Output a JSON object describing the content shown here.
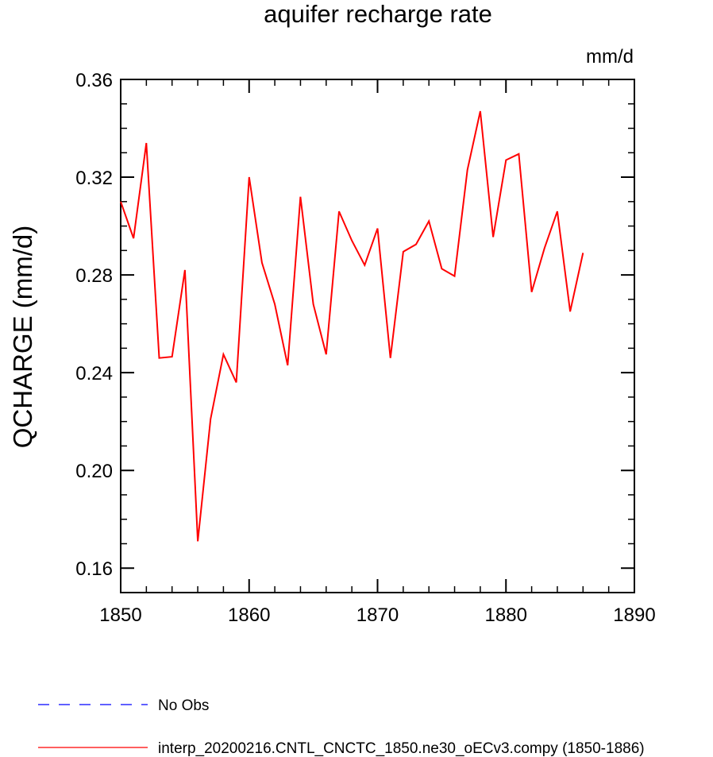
{
  "chart_data": {
    "type": "line",
    "title": "aquifer recharge rate",
    "units": "mm/d",
    "ylabel": "QCHARGE  (mm/d)",
    "xlabel": "",
    "xlim": [
      1850,
      1890
    ],
    "ylim": [
      0.15,
      0.36
    ],
    "x_ticks": [
      1850,
      1860,
      1870,
      1880,
      1890
    ],
    "x_tick_labels": [
      "1850",
      "1860",
      "1870",
      "1880",
      "1890"
    ],
    "y_ticks": [
      0.16,
      0.2,
      0.24,
      0.28,
      0.32,
      0.36
    ],
    "y_tick_labels": [
      "0.16",
      "0.20",
      "0.24",
      "0.28",
      "0.32",
      "0.36"
    ],
    "grid": false,
    "legend_position": "bottom-left, below plot",
    "series": [
      {
        "name": "No Obs",
        "color": "#0000ff",
        "style": "dashed",
        "x": [],
        "values": []
      },
      {
        "name": "interp_20200216.CNTL_CNCTC_1850.ne30_oECv3.compy (1850-1886)",
        "color": "#ff0000",
        "style": "solid",
        "x": [
          1850,
          1851,
          1852,
          1853,
          1854,
          1855,
          1856,
          1857,
          1858,
          1859,
          1860,
          1861,
          1862,
          1863,
          1864,
          1865,
          1866,
          1867,
          1868,
          1869,
          1870,
          1871,
          1872,
          1873,
          1874,
          1875,
          1876,
          1877,
          1878,
          1879,
          1880,
          1881,
          1882,
          1883,
          1884,
          1885,
          1886
        ],
        "values": [
          0.31,
          0.295,
          0.334,
          0.246,
          0.2465,
          0.282,
          0.171,
          0.221,
          0.2475,
          0.236,
          0.32,
          0.285,
          0.268,
          0.243,
          0.312,
          0.268,
          0.2475,
          0.306,
          0.294,
          0.284,
          0.299,
          0.246,
          0.2895,
          0.2925,
          0.302,
          0.2825,
          0.2795,
          0.323,
          0.347,
          0.2955,
          0.327,
          0.3295,
          0.273,
          0.291,
          0.306,
          0.265,
          0.289
        ]
      }
    ]
  }
}
